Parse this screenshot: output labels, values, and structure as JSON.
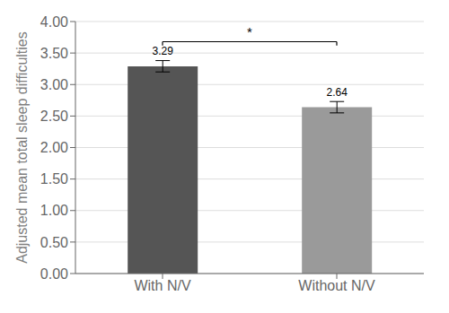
{
  "chart_data": {
    "type": "bar",
    "categories": [
      "With N/V",
      "Without N/V"
    ],
    "values": [
      3.29,
      2.64
    ],
    "errors": [
      0.09,
      0.09
    ],
    "colors": [
      "#555555",
      "#9a9a9a"
    ],
    "ylabel": "Adjusted mean total sleep difficulties",
    "ylim": [
      0,
      4.0
    ],
    "yticks": [
      {
        "value": 0.0,
        "label": "0.00"
      },
      {
        "value": 0.5,
        "label": "0.50"
      },
      {
        "value": 1.0,
        "label": "1.00"
      },
      {
        "value": 1.5,
        "label": "1.50"
      },
      {
        "value": 2.0,
        "label": "2.00"
      },
      {
        "value": 2.5,
        "label": "2.50"
      },
      {
        "value": 3.0,
        "label": "3.00"
      },
      {
        "value": 3.5,
        "label": "3.50"
      },
      {
        "value": 4.0,
        "label": "4.00"
      }
    ],
    "grid": true,
    "data_labels": true,
    "annotations": [
      {
        "text": "*",
        "from": "With N/V",
        "to": "Without N/V"
      }
    ]
  }
}
